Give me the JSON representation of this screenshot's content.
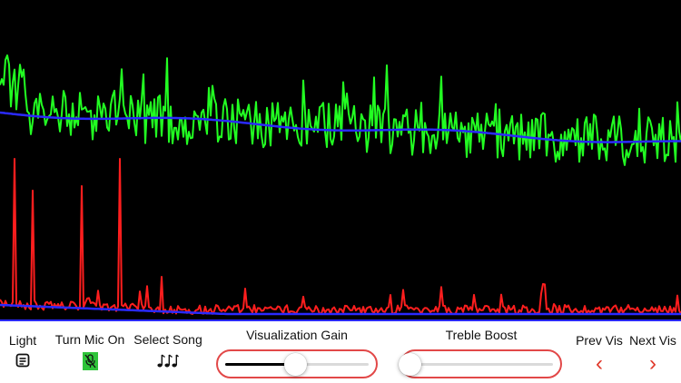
{
  "visualizer": {
    "background_color": "#000000",
    "upper_wave_color": "#22ff22",
    "upper_avg_color": "#2a2aff",
    "lower_wave_color": "#ff1e1e",
    "lower_avg_color": "#2a2aff"
  },
  "controls": {
    "light": {
      "label": "Light",
      "icon": "light-toggle-icon"
    },
    "mic": {
      "label": "Turn Mic On",
      "icon": "mic-off-icon",
      "icon_color": "#2fc43a"
    },
    "song": {
      "label": "Select Song",
      "icon": "music-notes-icon"
    },
    "gain": {
      "label": "Visualization Gain",
      "value": 0.49
    },
    "treble": {
      "label": "Treble Boost",
      "value": 0.0
    },
    "prev": {
      "label": "Prev Vis",
      "icon": "chevron-left-icon"
    },
    "next": {
      "label": "Next Vis",
      "icon": "chevron-right-icon"
    },
    "accent_color": "#e0392b"
  }
}
